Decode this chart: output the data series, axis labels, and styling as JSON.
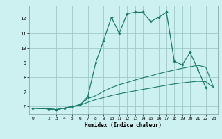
{
  "title": "",
  "xlabel": "Humidex (Indice chaleur)",
  "bg_color": "#cdf0f0",
  "grid_color": "#a0c8c8",
  "line_color": "#1a7a6a",
  "xlim": [
    -0.5,
    23.5
  ],
  "ylim": [
    5.5,
    12.9
  ],
  "xticks": [
    0,
    2,
    3,
    4,
    5,
    6,
    7,
    8,
    9,
    10,
    11,
    12,
    13,
    14,
    15,
    16,
    17,
    18,
    19,
    20,
    21,
    22,
    23
  ],
  "yticks": [
    6,
    7,
    8,
    9,
    10,
    11,
    12
  ],
  "line1_x": [
    0,
    2,
    3,
    4,
    5,
    6,
    7,
    8,
    9,
    10,
    11,
    12,
    13,
    14,
    15,
    16,
    17,
    18,
    19,
    20,
    21,
    22
  ],
  "line1_y": [
    5.9,
    5.85,
    5.8,
    5.9,
    6.0,
    6.1,
    6.7,
    9.0,
    10.5,
    12.1,
    11.0,
    12.35,
    12.45,
    12.45,
    11.8,
    12.1,
    12.45,
    9.1,
    8.85,
    9.7,
    8.55,
    7.3
  ],
  "line2_x": [
    0,
    2,
    3,
    4,
    5,
    6,
    7,
    8,
    9,
    10,
    11,
    12,
    13,
    14,
    15,
    16,
    17,
    18,
    19,
    20,
    21,
    22,
    23
  ],
  "line2_y": [
    5.9,
    5.85,
    5.8,
    5.9,
    6.0,
    6.15,
    6.55,
    6.75,
    7.05,
    7.3,
    7.5,
    7.65,
    7.82,
    7.97,
    8.1,
    8.25,
    8.38,
    8.5,
    8.62,
    8.72,
    8.82,
    8.7,
    7.3
  ],
  "line3_x": [
    0,
    2,
    3,
    4,
    5,
    6,
    7,
    8,
    9,
    10,
    11,
    12,
    13,
    14,
    15,
    16,
    17,
    18,
    19,
    20,
    21,
    22,
    23
  ],
  "line3_y": [
    5.9,
    5.85,
    5.8,
    5.9,
    6.0,
    6.1,
    6.3,
    6.48,
    6.62,
    6.76,
    6.88,
    6.98,
    7.08,
    7.18,
    7.27,
    7.37,
    7.46,
    7.55,
    7.62,
    7.68,
    7.73,
    7.7,
    7.3
  ]
}
